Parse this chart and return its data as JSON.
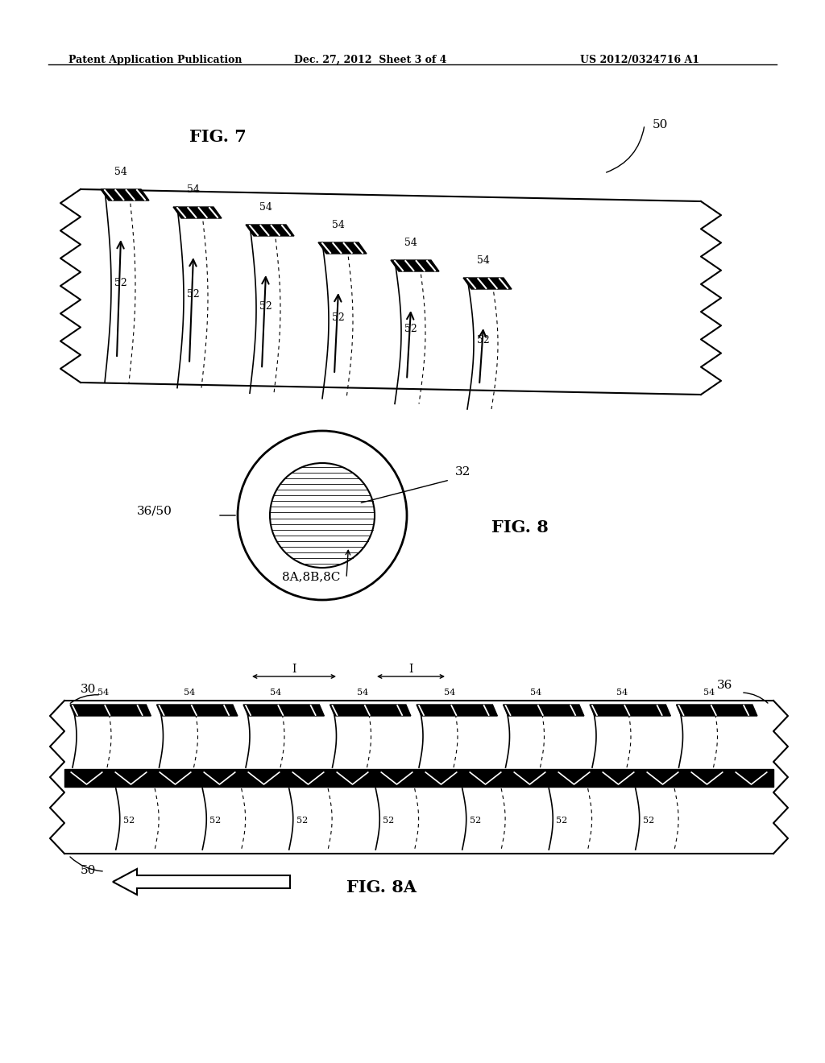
{
  "bg_color": "#ffffff",
  "header_left": "Patent Application Publication",
  "header_mid": "Dec. 27, 2012  Sheet 3 of 4",
  "header_right": "US 2012/0324716 A1",
  "fig7_label": "FIG. 7",
  "fig8_label": "FIG. 8",
  "fig8a_label": "FIG. 8A",
  "label_50_top": "50",
  "label_54": "54",
  "label_52": "52",
  "label_32": "32",
  "label_36_50": "36/50",
  "label_8abc": "8A,8B,8C",
  "label_30": "30",
  "label_36": "36",
  "label_50_bot": "50"
}
